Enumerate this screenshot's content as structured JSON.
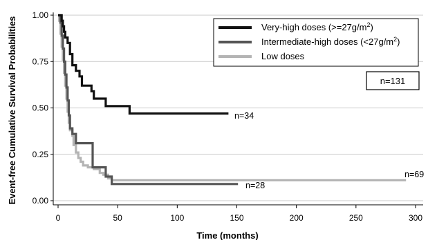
{
  "chart_data": {
    "type": "line",
    "step": true,
    "xlabel": "Time (months)",
    "ylabel": "Event-free Cumulative Survival Probabilities",
    "xlim": [
      0,
      300
    ],
    "ylim": [
      0,
      1
    ],
    "xticks": [
      0,
      50,
      100,
      150,
      200,
      250,
      300
    ],
    "yticks": [
      "0.00",
      "0.25",
      "0.50",
      "0.75",
      "1.00"
    ],
    "grid": "horizontal",
    "legend_position": "top-right",
    "legend": [
      {
        "label_main": "Very-high doses (>=27g/m",
        "sup": "2",
        "label_end": ")"
      },
      {
        "label_main": "Intermediate-high doses (<27g/m",
        "sup": "2",
        "label_end": ")"
      },
      {
        "label_main": "Low doses",
        "sup": "",
        "label_end": ""
      }
    ],
    "total_label": "n=131",
    "series": [
      {
        "name": "Very-high doses (>=27g/m2)",
        "color": "#111111",
        "end_label": "n=34",
        "x": [
          0,
          2,
          3,
          4,
          5,
          6,
          8,
          10,
          12,
          15,
          18,
          20,
          28,
          30,
          38,
          40,
          58,
          60,
          143
        ],
        "y": [
          1.0,
          1.0,
          0.97,
          0.94,
          0.91,
          0.88,
          0.85,
          0.79,
          0.73,
          0.7,
          0.67,
          0.62,
          0.59,
          0.55,
          0.55,
          0.51,
          0.51,
          0.47,
          0.47
        ]
      },
      {
        "name": "Intermediate-high doses (<27g/m2)",
        "color": "#555555",
        "end_label": "n=28",
        "x": [
          0,
          2,
          3,
          4,
          5,
          6,
          7,
          8,
          9,
          10,
          12,
          15,
          27,
          29,
          33,
          40,
          43,
          45,
          151
        ],
        "y": [
          1.0,
          0.96,
          0.89,
          0.82,
          0.75,
          0.68,
          0.61,
          0.54,
          0.46,
          0.39,
          0.36,
          0.31,
          0.31,
          0.18,
          0.18,
          0.13,
          0.13,
          0.09,
          0.09
        ]
      },
      {
        "name": "Low doses",
        "color": "#b4b4b4",
        "end_label": "n=69",
        "x": [
          0,
          1,
          2,
          3,
          4,
          5,
          6,
          7,
          8,
          9,
          10,
          12,
          13,
          15,
          17,
          19,
          21,
          25,
          30,
          35,
          38,
          42,
          45,
          292
        ],
        "y": [
          1.0,
          0.97,
          0.9,
          0.83,
          0.76,
          0.69,
          0.62,
          0.55,
          0.48,
          0.42,
          0.38,
          0.35,
          0.3,
          0.26,
          0.23,
          0.21,
          0.19,
          0.18,
          0.17,
          0.15,
          0.14,
          0.12,
          0.11,
          0.11
        ]
      }
    ]
  }
}
